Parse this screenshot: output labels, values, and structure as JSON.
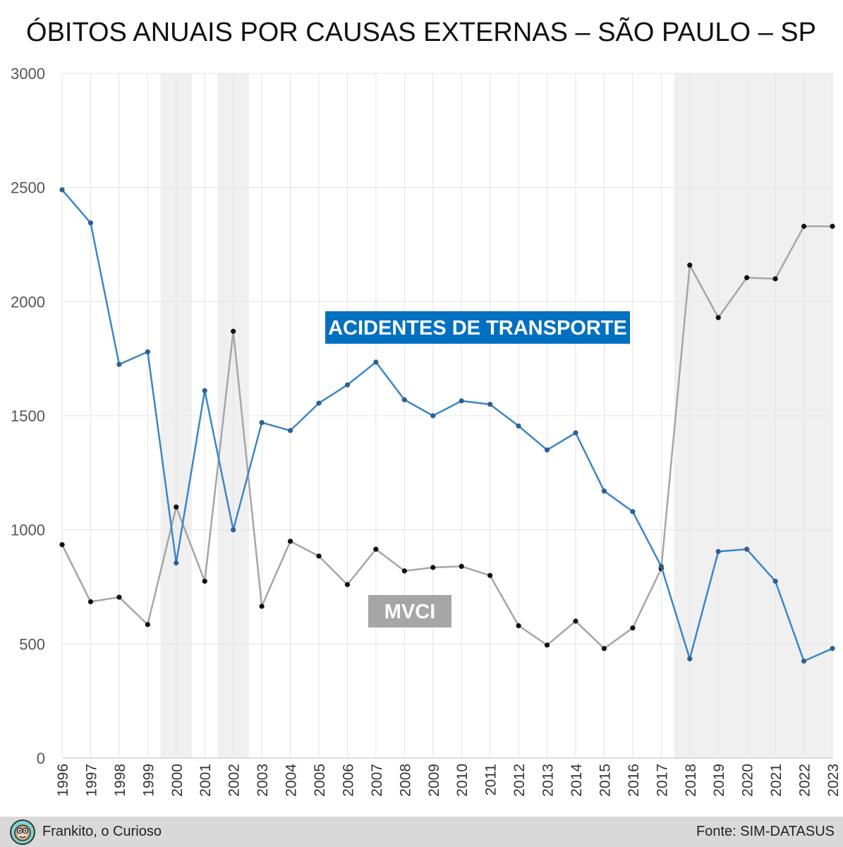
{
  "title": "ÓBITOS ANUAIS POR CAUSAS EXTERNAS – SÃO PAULO – SP",
  "footer": {
    "author": "Frankito, o Curioso",
    "source": "Fonte: SIM-DATASUS",
    "avatar_icon": "monkey-face-icon"
  },
  "chart_data": {
    "type": "line",
    "title": "ÓBITOS ANUAIS POR CAUSAS EXTERNAS – SÃO PAULO – SP",
    "x": [
      "1996",
      "1997",
      "1998",
      "1999",
      "2000",
      "2001",
      "2002",
      "2003",
      "2004",
      "2005",
      "2006",
      "2007",
      "2008",
      "2009",
      "2010",
      "2011",
      "2012",
      "2013",
      "2014",
      "2015",
      "2016",
      "2017",
      "2018",
      "2019",
      "2020",
      "2021",
      "2022",
      "2023"
    ],
    "ylim": [
      0,
      3000
    ],
    "yticks": [
      0,
      500,
      1000,
      1500,
      2000,
      2500,
      3000
    ],
    "grid": true,
    "shaded_periods": [
      [
        "2000",
        "2000"
      ],
      [
        "2002",
        "2002"
      ],
      [
        "2018",
        "2023"
      ]
    ],
    "series": [
      {
        "name": "ACIDENTES DE TRANSPORTE",
        "color": "#3b86c6",
        "label_bg": "#0070c0",
        "values": [
          2490,
          2345,
          1725,
          1780,
          855,
          1610,
          1000,
          1470,
          1435,
          1555,
          1635,
          1735,
          1570,
          1500,
          1565,
          1550,
          1455,
          1350,
          1425,
          1170,
          1080,
          840,
          435,
          905,
          915,
          775,
          425,
          480
        ]
      },
      {
        "name": "MVCI",
        "color": "#a6a6a6",
        "label_bg": "#a6a6a6",
        "values": [
          935,
          685,
          705,
          585,
          1100,
          775,
          1870,
          665,
          950,
          885,
          760,
          915,
          820,
          835,
          840,
          800,
          580,
          495,
          600,
          480,
          570,
          830,
          2160,
          1930,
          2105,
          2100,
          2330,
          2330
        ]
      }
    ]
  }
}
